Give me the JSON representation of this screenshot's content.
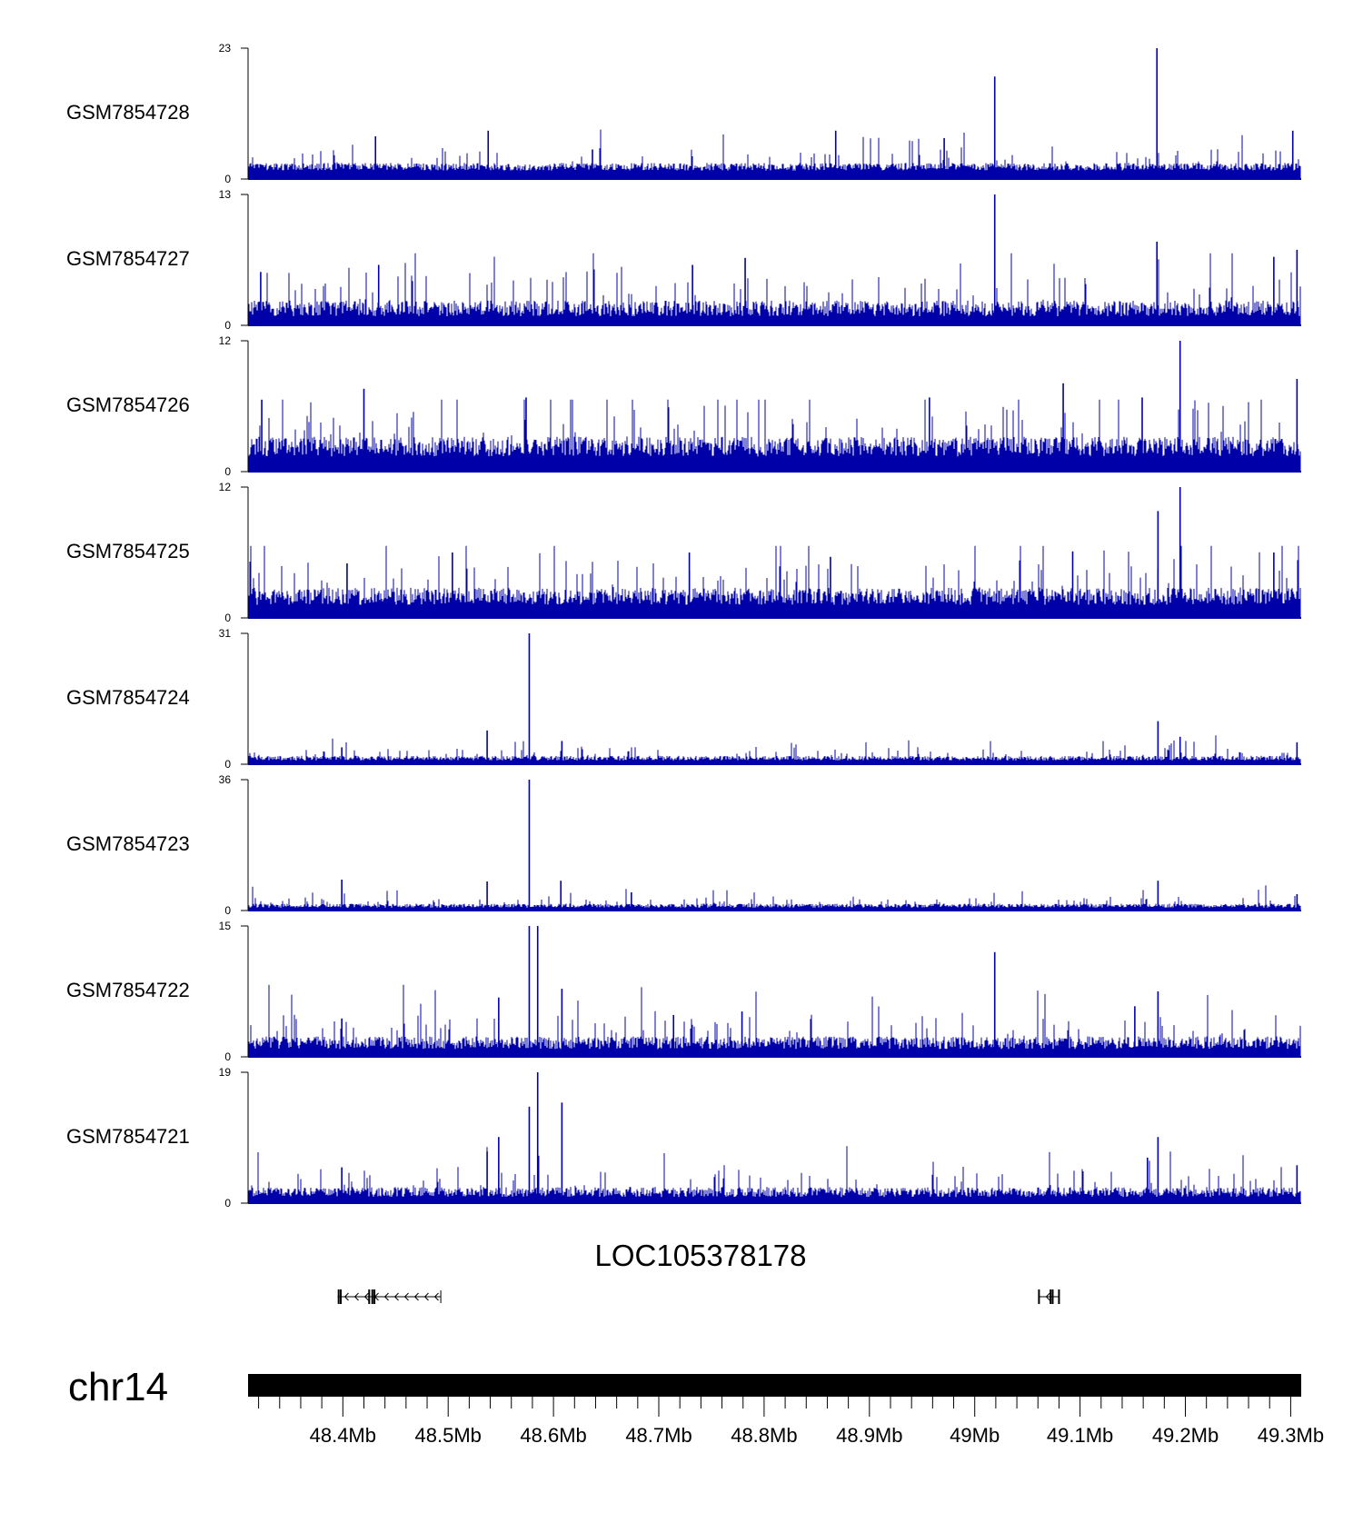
{
  "chart_data": {
    "type": "bar",
    "track_color": "#0000a8",
    "x_axis": {
      "chromosome": "chr14",
      "xlim_mb": [
        48.31,
        49.31
      ],
      "ticks_mb": [
        48.4,
        48.5,
        48.6,
        48.7,
        48.8,
        48.9,
        49.0,
        49.1,
        49.2,
        49.3
      ],
      "tick_labels": [
        "48.4Mb",
        "48.5Mb",
        "48.6Mb",
        "48.7Mb",
        "48.8Mb",
        "48.9Mb",
        "49Mb",
        "49.1Mb",
        "49.2Mb",
        "49.3Mb"
      ]
    },
    "tracks": [
      {
        "name": "GSM7854728",
        "ymax": 23,
        "ymin": 0,
        "max_label": "23",
        "min_label": "0",
        "baseline": 1.5,
        "noise": 2.2,
        "peaks": [
          {
            "x": 49.173,
            "y": 23
          },
          {
            "x": 49.019,
            "y": 18
          },
          {
            "x": 48.538,
            "y": 8.5
          },
          {
            "x": 48.868,
            "y": 8.5
          },
          {
            "x": 48.431,
            "y": 7.5
          },
          {
            "x": 48.971,
            "y": 7.2
          },
          {
            "x": 49.302,
            "y": 8.5
          },
          {
            "x": 48.637,
            "y": 5.2
          }
        ]
      },
      {
        "name": "GSM7854727",
        "ymax": 13,
        "ymin": 0,
        "max_label": "13",
        "min_label": "0",
        "baseline": 0.9,
        "noise": 2.6,
        "peaks": [
          {
            "x": 49.019,
            "y": 13
          },
          {
            "x": 49.173,
            "y": 8.3
          },
          {
            "x": 49.284,
            "y": 6.8
          },
          {
            "x": 49.306,
            "y": 7.5
          },
          {
            "x": 48.782,
            "y": 6.7
          },
          {
            "x": 48.434,
            "y": 6.0
          },
          {
            "x": 48.322,
            "y": 5.3
          },
          {
            "x": 48.732,
            "y": 6.0
          }
        ]
      },
      {
        "name": "GSM7854726",
        "ymax": 12,
        "ymin": 0,
        "max_label": "12",
        "min_label": "0",
        "baseline": 1.4,
        "noise": 3.0,
        "peaks": [
          {
            "x": 49.195,
            "y": 12
          },
          {
            "x": 49.084,
            "y": 8.1
          },
          {
            "x": 49.306,
            "y": 8.5
          },
          {
            "x": 48.42,
            "y": 7.6
          },
          {
            "x": 48.574,
            "y": 6.8
          },
          {
            "x": 49.159,
            "y": 6.8
          },
          {
            "x": 48.323,
            "y": 6.6
          },
          {
            "x": 48.957,
            "y": 6.8
          }
        ]
      },
      {
        "name": "GSM7854725",
        "ymax": 12,
        "ymin": 0,
        "max_label": "12",
        "min_label": "0",
        "baseline": 1.2,
        "noise": 2.6,
        "peaks": [
          {
            "x": 49.195,
            "y": 12
          },
          {
            "x": 49.174,
            "y": 9.8
          },
          {
            "x": 49.093,
            "y": 6.1
          },
          {
            "x": 48.729,
            "y": 6.0
          },
          {
            "x": 48.504,
            "y": 6.0
          },
          {
            "x": 48.863,
            "y": 5.6
          },
          {
            "x": 49.284,
            "y": 6.0
          },
          {
            "x": 48.404,
            "y": 5.0
          }
        ]
      },
      {
        "name": "GSM7854724",
        "ymax": 31,
        "ymin": 0,
        "max_label": "31",
        "min_label": "0",
        "baseline": 0.9,
        "noise": 1.8,
        "peaks": [
          {
            "x": 48.577,
            "y": 31
          },
          {
            "x": 49.174,
            "y": 10.2
          },
          {
            "x": 48.537,
            "y": 8.0
          },
          {
            "x": 48.608,
            "y": 5.5
          },
          {
            "x": 49.195,
            "y": 6.5
          },
          {
            "x": 48.399,
            "y": 4.0
          },
          {
            "x": 49.306,
            "y": 5.2
          }
        ]
      },
      {
        "name": "GSM7854723",
        "ymax": 36,
        "ymin": 0,
        "max_label": "36",
        "min_label": "0",
        "baseline": 0.8,
        "noise": 1.8,
        "peaks": [
          {
            "x": 48.577,
            "y": 36
          },
          {
            "x": 48.607,
            "y": 8.2
          },
          {
            "x": 48.537,
            "y": 8.0
          },
          {
            "x": 49.174,
            "y": 8.2
          },
          {
            "x": 48.399,
            "y": 8.5
          },
          {
            "x": 48.674,
            "y": 5.0
          },
          {
            "x": 49.306,
            "y": 4.5
          }
        ]
      },
      {
        "name": "GSM7854722",
        "ymax": 15,
        "ymin": 0,
        "max_label": "15",
        "min_label": "0",
        "baseline": 0.9,
        "noise": 2.4,
        "peaks": [
          {
            "x": 48.577,
            "y": 15
          },
          {
            "x": 48.585,
            "y": 15
          },
          {
            "x": 49.019,
            "y": 12
          },
          {
            "x": 48.608,
            "y": 7.8
          },
          {
            "x": 48.548,
            "y": 6.8
          },
          {
            "x": 49.174,
            "y": 7.5
          },
          {
            "x": 49.152,
            "y": 5.8
          },
          {
            "x": 48.779,
            "y": 5.2
          },
          {
            "x": 48.714,
            "y": 4.8
          },
          {
            "x": 48.399,
            "y": 4.4
          }
        ]
      },
      {
        "name": "GSM7854721",
        "ymax": 19,
        "ymin": 0,
        "max_label": "19",
        "min_label": "0",
        "baseline": 0.9,
        "noise": 2.4,
        "peaks": [
          {
            "x": 48.585,
            "y": 19
          },
          {
            "x": 48.577,
            "y": 14
          },
          {
            "x": 48.608,
            "y": 14.6
          },
          {
            "x": 48.548,
            "y": 9.6
          },
          {
            "x": 48.537,
            "y": 7.5
          },
          {
            "x": 49.174,
            "y": 9.6
          },
          {
            "x": 49.164,
            "y": 6.6
          },
          {
            "x": 48.399,
            "y": 5.2
          },
          {
            "x": 49.306,
            "y": 5.5
          }
        ]
      }
    ],
    "gene": {
      "label": "LOC105378178",
      "segments": [
        {
          "start": 48.395,
          "end": 48.493,
          "exons": [
            48.396,
            48.398,
            48.425,
            48.428,
            48.43
          ],
          "strand": "-"
        },
        {
          "start": 49.061,
          "end": 49.08,
          "exons": [
            49.061,
            49.072,
            49.074,
            49.08
          ],
          "strand": "-"
        }
      ]
    }
  }
}
